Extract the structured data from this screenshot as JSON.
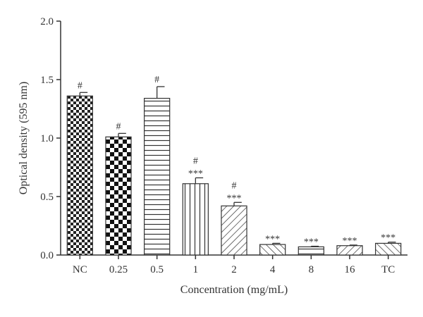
{
  "chart_data": {
    "type": "bar",
    "title": "",
    "xlabel": "Concentration (mg/mL)",
    "ylabel": "Optical density (595 nm)",
    "ylim": [
      0,
      2.0
    ],
    "yticks": [
      "0.0",
      "0.5",
      "1.0",
      "1.5",
      "2.0"
    ],
    "categories": [
      "NC",
      "0.25",
      "0.5",
      "1",
      "2",
      "4",
      "8",
      "16",
      "TC"
    ],
    "values": [
      1.36,
      1.01,
      1.34,
      0.61,
      0.42,
      0.09,
      0.07,
      0.08,
      0.1
    ],
    "errors": [
      0.03,
      0.03,
      0.1,
      0.05,
      0.03,
      0.01,
      0.005,
      0.005,
      0.01
    ],
    "patterns": [
      "small-check",
      "large-check",
      "horizontal-lines",
      "vertical-lines",
      "diagonal-lines-right",
      "diagonal-lines-left",
      "horizontal-lines",
      "diagonal-lines-right",
      "diagonal-lines-left"
    ],
    "annotations": [
      [
        "#"
      ],
      [
        "#"
      ],
      [
        "#"
      ],
      [
        "#",
        "***"
      ],
      [
        "#",
        "***"
      ],
      [
        "***"
      ],
      [
        "***"
      ],
      [
        "***"
      ],
      [
        "***"
      ]
    ],
    "grid": false,
    "legend": "none"
  }
}
